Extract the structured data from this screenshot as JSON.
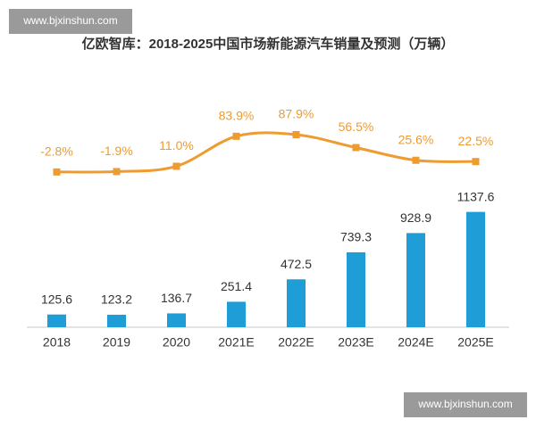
{
  "watermarks": [
    "www.bjxinshun.com",
    "www.bjxinshun.com"
  ],
  "chart_data": {
    "type": "bar",
    "title": "亿欧智库：2018-2025中国市场新能源汽车销量及预测（万辆）",
    "categories": [
      "2018",
      "2019",
      "2020",
      "2021E",
      "2022E",
      "2023E",
      "2024E",
      "2025E"
    ],
    "ylim": [
      0,
      2700
    ],
    "y2lim": [
      -380,
      285
    ],
    "series": [
      {
        "type": "bar",
        "color": "#1e9dd6",
        "values": [
          125.6,
          123.2,
          136.7,
          251.4,
          472.5,
          739.3,
          928.9,
          1137.6
        ]
      },
      {
        "type": "line",
        "axis": "y2",
        "color": "#ee9b30",
        "values": [
          -2.8,
          -1.9,
          11.0,
          83.9,
          87.9,
          56.5,
          25.6,
          22.5
        ],
        "value_labels": [
          "-2.8%",
          "-1.9%",
          "11.0%",
          "83.9%",
          "87.9%",
          "56.5%",
          "25.6%",
          "22.5%"
        ]
      }
    ]
  }
}
